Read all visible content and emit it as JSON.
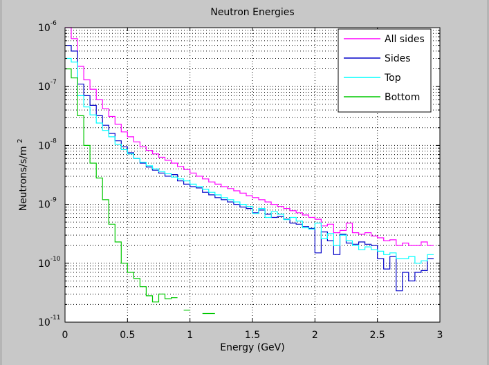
{
  "window": {
    "background_color": "#c8c8c8"
  },
  "chart_data": {
    "type": "line",
    "title": "Neutron Energies",
    "xlabel": "Energy (GeV)",
    "ylabel_parts": [
      "Neutrons/s/m",
      "2"
    ],
    "xlim": [
      0,
      3
    ],
    "ylim": [
      1e-11,
      1e-06
    ],
    "yscale": "log",
    "grid": true,
    "legend_location": "top-right",
    "x_ticks": [
      "0",
      "0.5",
      "1",
      "1.5",
      "2",
      "2.5",
      "3"
    ],
    "y_ticks": [
      {
        "base": "10",
        "exp": "-11"
      },
      {
        "base": "10",
        "exp": "-10"
      },
      {
        "base": "10",
        "exp": "-9"
      },
      {
        "base": "10",
        "exp": "-8"
      },
      {
        "base": "10",
        "exp": "-7"
      },
      {
        "base": "10",
        "exp": "-6"
      }
    ],
    "bin_width": 0.05,
    "x": [
      0.025,
      0.075,
      0.125,
      0.175,
      0.225,
      0.275,
      0.325,
      0.375,
      0.425,
      0.475,
      0.525,
      0.575,
      0.625,
      0.675,
      0.725,
      0.775,
      0.825,
      0.875,
      0.925,
      0.975,
      1.025,
      1.075,
      1.125,
      1.175,
      1.225,
      1.275,
      1.325,
      1.375,
      1.425,
      1.475,
      1.525,
      1.575,
      1.625,
      1.675,
      1.725,
      1.775,
      1.825,
      1.875,
      1.925,
      1.975,
      2.025,
      2.075,
      2.125,
      2.175,
      2.225,
      2.275,
      2.325,
      2.375,
      2.425,
      2.475,
      2.525,
      2.575,
      2.625,
      2.675,
      2.725,
      2.775,
      2.825,
      2.875,
      2.925
    ],
    "series": [
      {
        "name": "All sides",
        "color": "#ff00ff",
        "values": [
          1e-06,
          6.5e-07,
          2.2e-07,
          1.3e-07,
          9e-08,
          6e-08,
          4.2e-08,
          3.1e-08,
          2.3e-08,
          1.7e-08,
          1.4e-08,
          1.15e-08,
          9.5e-09,
          8.2e-09,
          7.2e-09,
          6.3e-09,
          5.6e-09,
          5e-09,
          4.4e-09,
          3.9e-09,
          3.4e-09,
          3e-09,
          2.7e-09,
          2.4e-09,
          2.2e-09,
          2e-09,
          1.85e-09,
          1.7e-09,
          1.55e-09,
          1.4e-09,
          1.3e-09,
          1.2e-09,
          1.1e-09,
          1e-09,
          9.2e-10,
          8.5e-10,
          7.8e-10,
          7.2e-10,
          6.6e-10,
          6e-10,
          5.6e-10,
          4.3e-10,
          4.6e-10,
          3.3e-10,
          3.6e-10,
          4.8e-10,
          3.3e-10,
          3.1e-10,
          3.3e-10,
          2.9e-10,
          2.7e-10,
          2.4e-10,
          2.5e-10,
          2e-10,
          2.2e-10,
          2e-10,
          2e-10,
          2.3e-10,
          2e-10
        ]
      },
      {
        "name": "Sides",
        "color": "#0000c8",
        "values": [
          5e-07,
          4e-07,
          1.1e-07,
          7e-08,
          4.8e-08,
          3.2e-08,
          2.2e-08,
          1.6e-08,
          1.2e-08,
          9.5e-09,
          7.5e-09,
          6e-09,
          5e-09,
          4.3e-09,
          3.8e-09,
          3.4e-09,
          3e-09,
          3.2e-09,
          2.5e-09,
          2.2e-09,
          2e-09,
          1.9e-09,
          1.6e-09,
          1.45e-09,
          1.3e-09,
          1.2e-09,
          1.1e-09,
          1e-09,
          9e-10,
          8.5e-10,
          7.2e-10,
          8e-10,
          6.8e-10,
          6e-10,
          6.2e-10,
          5.6e-10,
          4.8e-10,
          4.6e-10,
          4.2e-10,
          3.9e-10,
          1.5e-10,
          3.4e-10,
          2.4e-10,
          1.4e-10,
          3.1e-10,
          2.2e-10,
          2.1e-10,
          2.3e-10,
          2.1e-10,
          2e-10,
          1.2e-10,
          8e-11,
          1.3e-10,
          3.4e-11,
          7e-11,
          5e-11,
          7e-11,
          7.5e-11,
          1.2e-10
        ]
      },
      {
        "name": "Top",
        "color": "#00ffff",
        "values": [
          3e-07,
          2.6e-07,
          7e-08,
          4.5e-08,
          3.3e-08,
          2.4e-08,
          1.8e-08,
          1.4e-08,
          1.05e-08,
          8.5e-09,
          7.2e-09,
          6e-09,
          5.2e-09,
          4.5e-09,
          4e-09,
          3.6e-09,
          3.3e-09,
          2.9e-09,
          2.7e-09,
          2.5e-09,
          2.2e-09,
          2e-09,
          1.8e-09,
          1.6e-09,
          1.45e-09,
          1.3e-09,
          1.2e-09,
          1.1e-09,
          1e-09,
          9.2e-10,
          7e-10,
          8.5e-10,
          6e-10,
          7.5e-10,
          6.8e-10,
          5.5e-10,
          6e-10,
          5.2e-10,
          4e-10,
          3.8e-10,
          4.8e-10,
          2.6e-10,
          3.2e-10,
          2e-10,
          3e-10,
          2.4e-10,
          2e-10,
          1.7e-10,
          1.9e-10,
          1.7e-10,
          1.6e-10,
          1.4e-10,
          1.5e-10,
          1.2e-10,
          1.2e-10,
          1.3e-10,
          1e-10,
          1.1e-10,
          1.4e-10
        ]
      },
      {
        "name": "Bottom",
        "color": "#00c800",
        "values": [
          2e-07,
          1.4e-07,
          3.2e-08,
          1e-08,
          5e-09,
          2.8e-09,
          1.2e-09,
          4.6e-10,
          2.3e-10,
          1e-10,
          7e-11,
          5.5e-11,
          4e-11,
          2.8e-11,
          2.2e-11,
          3e-11,
          2.5e-11,
          2.6e-11,
          null,
          1.6e-11,
          null,
          null,
          1.4e-11,
          1.4e-11,
          null,
          null,
          null,
          null,
          null,
          null,
          null,
          null,
          null,
          null,
          null,
          null,
          null,
          null,
          null,
          null,
          null,
          null,
          null,
          null,
          null,
          null,
          null,
          null,
          null,
          null,
          null,
          null,
          null,
          null,
          null,
          null,
          null,
          null,
          null
        ]
      }
    ]
  }
}
